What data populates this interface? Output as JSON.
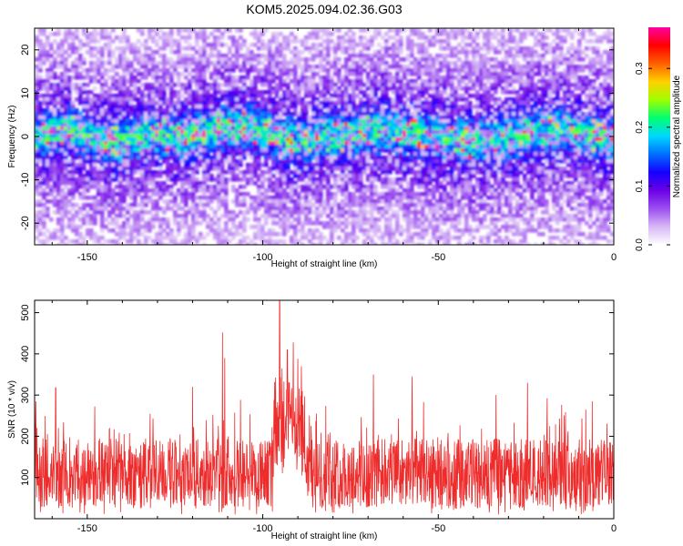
{
  "title": "KOM5.2025.094.02.36.G03",
  "chart_data": [
    {
      "type": "heatmap",
      "xlabel": "Height of straight line (km)",
      "ylabel": "Frequency (Hz)",
      "xlim": [
        -165,
        0
      ],
      "ylim": [
        -25,
        25
      ],
      "x_ticks": [
        -150,
        -100,
        -50,
        0
      ],
      "x_tick_labels": [
        "-150",
        "-100",
        "-50",
        "0"
      ],
      "y_ticks": [
        -20,
        -10,
        0,
        10,
        20
      ],
      "y_tick_labels": [
        "-20",
        "-10",
        "0",
        "10",
        "20"
      ],
      "colorbar": {
        "label": "Normalized spectral amplitude",
        "range": [
          0,
          0.37
        ],
        "ticks": [
          0,
          0.1,
          0.2,
          0.3
        ],
        "tick_labels": [
          "0.0",
          "0.1",
          "0.2",
          "0.3"
        ],
        "colormap": [
          "#ffffff",
          "#d7b8f5",
          "#9c4ef0",
          "#6a00e6",
          "#1400ff",
          "#0070ff",
          "#00d8ff",
          "#00ff70",
          "#a0ff00",
          "#ffd000",
          "#ff6000",
          "#ff0000",
          "#ff00a0"
        ]
      },
      "ridge_center_hz": [
        0,
        2,
        0,
        -1,
        1,
        0,
        2,
        3,
        1,
        -1,
        0,
        1,
        2,
        1,
        0,
        -1,
        0,
        1,
        2,
        1,
        -1
      ],
      "ridge_center_x_km": [
        -165,
        -157,
        -149,
        -141,
        -132,
        -124,
        -116,
        -107,
        -99,
        -91,
        -83,
        -74,
        -66,
        -58,
        -49,
        -41,
        -33,
        -25,
        -16,
        -8,
        0
      ],
      "ridge_peak_amplitude": 0.37
    },
    {
      "type": "line",
      "xlabel": "Height of straight line (km)",
      "ylabel": "SNR (10 * v/v)",
      "xlim": [
        -165,
        0
      ],
      "ylim": [
        0,
        530
      ],
      "x_ticks": [
        -150,
        -100,
        -50,
        0
      ],
      "x_tick_labels": [
        "-150",
        "-100",
        "-50",
        "0"
      ],
      "y_ticks": [
        100,
        200,
        300,
        400,
        500
      ],
      "y_tick_labels": [
        "100",
        "200",
        "300",
        "400",
        "500"
      ],
      "series": [
        {
          "color": "#ee2c2c",
          "baseline": 110,
          "noise_range": [
            10,
            320
          ],
          "peaks": [
            {
              "x": -95.2,
              "y": 530
            },
            {
              "x": -111.5,
              "y": 452
            },
            {
              "x": -91.3,
              "y": 428
            },
            {
              "x": -93.0,
              "y": 410
            },
            {
              "x": -90.0,
              "y": 388
            },
            {
              "x": -89.0,
              "y": 370
            },
            {
              "x": -94.5,
              "y": 365
            },
            {
              "x": -110.8,
              "y": 390
            },
            {
              "x": -68.5,
              "y": 350
            },
            {
              "x": -57.5,
              "y": 345
            },
            {
              "x": -24.6,
              "y": 330
            },
            {
              "x": -159.0,
              "y": 318
            },
            {
              "x": -120.0,
              "y": 320
            }
          ]
        }
      ]
    }
  ]
}
